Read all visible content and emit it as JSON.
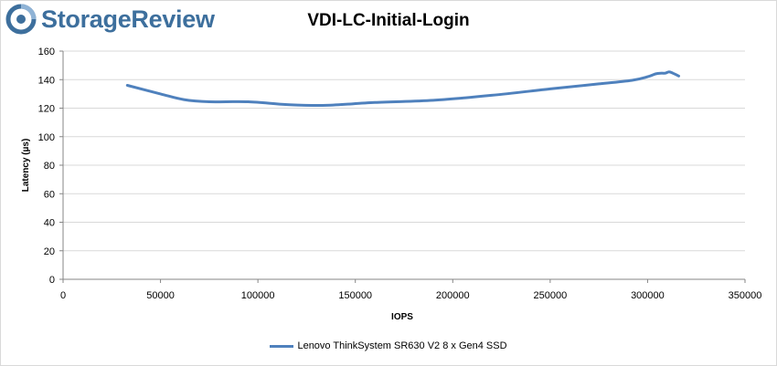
{
  "brand": {
    "name": "StorageReview",
    "logo_icon": "storagereview-logo-icon"
  },
  "colors": {
    "series": "#4f81bd",
    "grid": "#d9d9d9",
    "axis": "#868686",
    "brand": "#3d6f9d"
  },
  "chart_data": {
    "type": "line",
    "title": "VDI-LC-Initial-Login",
    "xlabel": "IOPS",
    "ylabel": "Latency (µs)",
    "xlim": [
      0,
      350000
    ],
    "ylim": [
      0,
      160
    ],
    "xticks": [
      0,
      50000,
      100000,
      150000,
      200000,
      250000,
      300000,
      350000
    ],
    "yticks": [
      0,
      20,
      40,
      60,
      80,
      100,
      120,
      140,
      160
    ],
    "grid": "horizontal",
    "legend_position": "bottom",
    "series": [
      {
        "name": "Lenovo ThinkSystem SR630 V2 8 x Gen4 SSD",
        "x": [
          33000,
          50000,
          62000,
          75000,
          95000,
          115000,
          135000,
          160000,
          190000,
          220000,
          250000,
          275000,
          292000,
          300000,
          304000,
          307000,
          309000,
          311000,
          313000,
          316000
        ],
        "y": [
          136,
          130,
          126,
          124.5,
          124.5,
          122.5,
          122,
          124,
          125.5,
          129,
          133.5,
          137,
          139.5,
          142,
          144,
          144.5,
          144.5,
          145.5,
          144.5,
          142.5
        ]
      }
    ]
  }
}
